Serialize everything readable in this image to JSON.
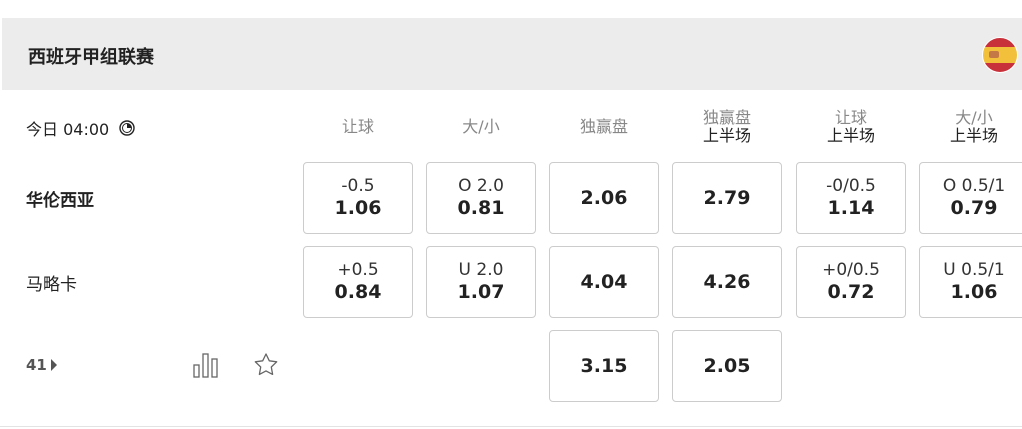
{
  "league": {
    "title": "西班牙甲组联赛",
    "flag_icon": "spain-flag-icon"
  },
  "match": {
    "time": "今日 04:00",
    "home": "华伦西亚",
    "away": "马略卡",
    "more_count": "41"
  },
  "columns": [
    {
      "line1": "让球",
      "line2": ""
    },
    {
      "line1": "大/小",
      "line2": ""
    },
    {
      "line1": "独赢盘",
      "line2": ""
    },
    {
      "line1": "独赢盘",
      "line2": "上半场"
    },
    {
      "line1": "让球",
      "line2": "上半场"
    },
    {
      "line1": "大/小",
      "line2": "上半场"
    }
  ],
  "rows": [
    [
      {
        "line": "-0.5",
        "odds": "1.06"
      },
      {
        "line": "O 2.0",
        "odds": "0.81"
      },
      {
        "line": "",
        "odds": "2.06"
      },
      {
        "line": "",
        "odds": "2.79"
      },
      {
        "line": "-0/0.5",
        "odds": "1.14"
      },
      {
        "line": "O 0.5/1",
        "odds": "0.79"
      }
    ],
    [
      {
        "line": "+0.5",
        "odds": "0.84"
      },
      {
        "line": "U 2.0",
        "odds": "1.07"
      },
      {
        "line": "",
        "odds": "4.04"
      },
      {
        "line": "",
        "odds": "4.26"
      },
      {
        "line": "+0/0.5",
        "odds": "0.72"
      },
      {
        "line": "U 0.5/1",
        "odds": "1.06"
      }
    ],
    [
      null,
      null,
      {
        "line": "",
        "odds": "3.15"
      },
      {
        "line": "",
        "odds": "2.05"
      },
      null,
      null
    ]
  ]
}
